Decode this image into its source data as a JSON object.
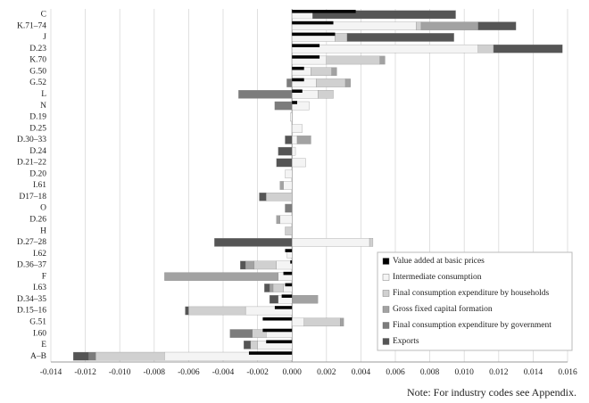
{
  "chart_data": {
    "type": "stacked-hbar",
    "categories": [
      "C",
      "K.71–74",
      "J",
      "D.23",
      "K.70",
      "G.50",
      "G.52",
      "L",
      "N",
      "D.19",
      "D.25",
      "D.30–33",
      "D.24",
      "D.21–22",
      "D.20",
      "I.61",
      "D17–18",
      "O",
      "D.26",
      "H",
      "D.27–28",
      "I.62",
      "D.36–37",
      "F",
      "I.63",
      "D.34–35",
      "D.15–16",
      "G.51",
      "I.60",
      "E",
      "A–B"
    ],
    "series": [
      {
        "name": "Value added at basic prices",
        "color": "#000000",
        "values": [
          0.0037,
          0.0024,
          0.0025,
          0.0016,
          0.0016,
          0.0007,
          0.0007,
          0.0006,
          0.0003,
          0,
          0,
          0,
          0,
          0,
          0,
          0,
          0,
          0,
          0,
          0,
          0,
          -0.0004,
          -0.0001,
          -0.0005,
          -0.0004,
          -0.0006,
          -0.001,
          -0.0017,
          -0.0017,
          -0.0015,
          -0.0025
        ]
      },
      {
        "name": "Intermediate consumption",
        "color": "#f4f4f4",
        "values": [
          0.0012,
          0.0072,
          0.0025,
          0.0108,
          0.002,
          0.0011,
          0.0014,
          0.0015,
          0.001,
          -0.0001,
          0.0006,
          0.0003,
          0.0002,
          0.0008,
          -0.0004,
          -0.0005,
          0,
          0,
          -0.0007,
          0,
          0.0045,
          -0.0003,
          -0.0009,
          -0.0008,
          -0.0005,
          -0.0008,
          -0.0027,
          0.0007,
          -0.0015,
          -0.002,
          -0.0074
        ]
      },
      {
        "name": "Final consumption expenditure by households",
        "color": "#d0d0d0",
        "values": [
          0,
          0.0003,
          0.0007,
          0.0009,
          0.0031,
          0.0012,
          0.0017,
          0.0009,
          0,
          0,
          0,
          0,
          0,
          0,
          0,
          0,
          -0.0015,
          0,
          0,
          -0.0004,
          0.0002,
          0,
          -0.0013,
          0,
          -0.0006,
          0,
          -0.0033,
          0.0021,
          -0.0008,
          -0.0004,
          -0.004
        ]
      },
      {
        "name": "Gross fixed capital formation",
        "color": "#a2a2a2",
        "values": [
          0,
          0.0033,
          0,
          0,
          0.0003,
          0.0003,
          0.0003,
          0,
          0,
          0,
          0,
          0.0008,
          0,
          0,
          0,
          -0.0002,
          0,
          0,
          -0.0002,
          0,
          0,
          0,
          -0.0005,
          -0.0066,
          -0.0002,
          0.0015,
          0,
          0.0002,
          0,
          0,
          0
        ]
      },
      {
        "name": "Final consumption expenditure by government",
        "color": "#7c7c7c",
        "values": [
          0,
          0,
          0,
          0,
          0,
          0,
          -0.0003,
          -0.0031,
          -0.001,
          0,
          0,
          0,
          0,
          0,
          0,
          0,
          0,
          -0.0004,
          0,
          0,
          0,
          0,
          0,
          0,
          0,
          0,
          0,
          0,
          -0.0013,
          0,
          -0.0004
        ]
      },
      {
        "name": "Exports",
        "color": "#555555",
        "values": [
          0.0083,
          0.0022,
          0.0062,
          0.004,
          0,
          0,
          0,
          0,
          0,
          0,
          0,
          -0.0004,
          -0.0008,
          -0.0009,
          0,
          0,
          -0.0004,
          0,
          0,
          0,
          -0.0045,
          0,
          -0.0003,
          0,
          -0.0003,
          -0.0005,
          -0.0002,
          0,
          0,
          -0.0004,
          -0.0009
        ]
      }
    ],
    "xlim": [
      -0.014,
      0.016
    ],
    "xticks": [
      -0.014,
      -0.012,
      {
        "value": -0.01,
        "label": "-0.010"
      },
      -0.008,
      -0.006,
      -0.004,
      -0.002,
      {
        "value": 0,
        "label": "0.000"
      },
      0.002,
      0.004,
      0.006,
      0.008,
      {
        "value": 0.01,
        "label": "0.010"
      },
      0.012,
      0.014,
      0.016
    ],
    "grid": true,
    "legend": "lower right",
    "note": "Note: For industry codes see Appendix."
  }
}
